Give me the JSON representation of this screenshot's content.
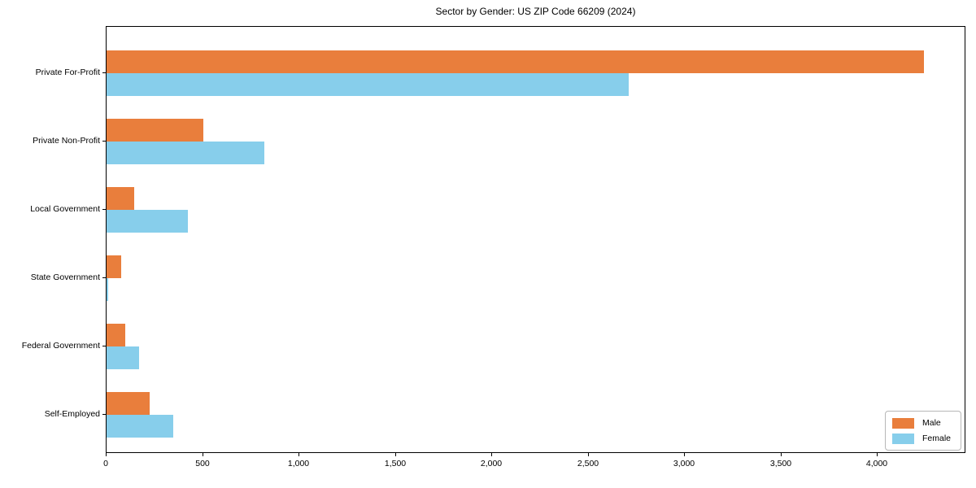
{
  "title": "Sector by Gender: US ZIP Code 66209 (2024)",
  "colors": {
    "male": "#E97E3C",
    "female": "#87CEEB",
    "axis": "#000000",
    "background": "#FFFFFF",
    "legend_border": "#B7B7B7"
  },
  "legend": {
    "items": [
      {
        "label": "Male",
        "color": "#E97E3C"
      },
      {
        "label": "Female",
        "color": "#87CEEB"
      }
    ]
  },
  "chart_data": {
    "type": "bar",
    "orientation": "horizontal",
    "title": "Sector by Gender: US ZIP Code 66209 (2024)",
    "xlabel": "",
    "ylabel": "",
    "categories": [
      "Private For-Profit",
      "Private Non-Profit",
      "Local Government",
      "State Government",
      "Federal Government",
      "Self-Employed"
    ],
    "series": [
      {
        "name": "Male",
        "color": "#E97E3C",
        "values": [
          4240,
          500,
          145,
          75,
          95,
          225
        ]
      },
      {
        "name": "Female",
        "color": "#87CEEB",
        "values": [
          2710,
          820,
          420,
          10,
          170,
          345
        ]
      }
    ],
    "xlim": [
      0,
      4450
    ],
    "xticks": [
      0,
      500,
      1000,
      1500,
      2000,
      2500,
      3000,
      3500,
      4000
    ],
    "xtick_labels": [
      "0",
      "500",
      "1,000",
      "1,500",
      "2,000",
      "2,500",
      "3,000",
      "3,500",
      "4,000"
    ],
    "grid": false,
    "legend_position": "lower right"
  }
}
